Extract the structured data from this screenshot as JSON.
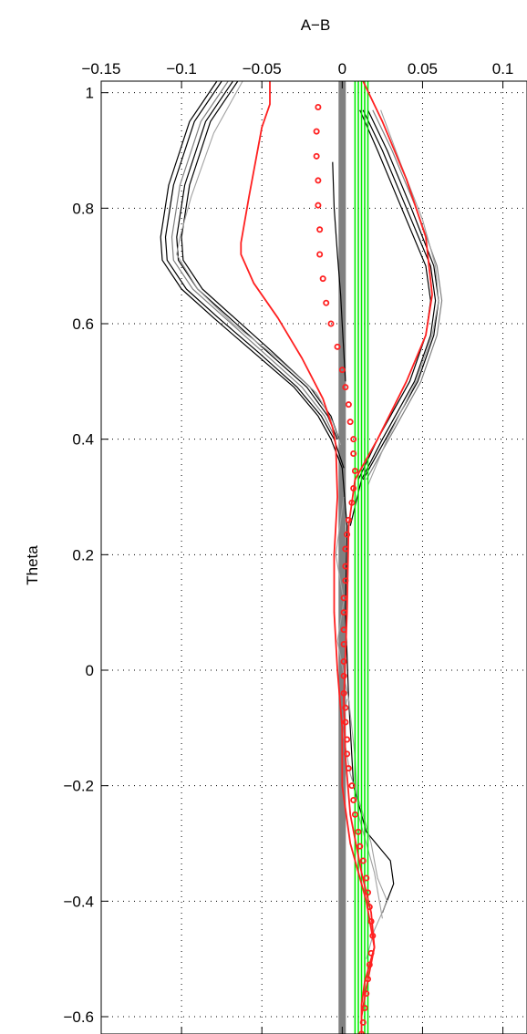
{
  "chart_data": {
    "type": "line",
    "title": "",
    "xlabel": "A−B",
    "ylabel": "Theta",
    "xlim": [
      -0.15,
      0.115
    ],
    "ylim": [
      -0.63,
      1.02
    ],
    "x_axis_position": "top",
    "grid": "dotted",
    "legend": "none",
    "x_ticks": [
      -0.15,
      -0.1,
      -0.05,
      0,
      0.05,
      0.1
    ],
    "x_tick_labels": [
      "−0.15",
      "−0.1",
      "−0.05",
      "0",
      "0.05",
      "0.1"
    ],
    "y_ticks": [
      -0.6,
      -0.4,
      -0.2,
      0,
      0.2,
      0.4,
      0.6,
      0.8,
      1.0
    ],
    "y_tick_labels": [
      "−0.6",
      "−0.4",
      "−0.2",
      "0",
      "0.2",
      "0.4",
      "0.6",
      "0.8",
      "1"
    ],
    "colors": {
      "red": "#ff2020",
      "green": "#00ee00",
      "black": "#000000",
      "gray": "#808080",
      "lightgray": "#a0a0a0",
      "thickgray": "#808080"
    },
    "series": [
      {
        "color": "black",
        "values": [
          [
            -0.078,
            1.02
          ],
          [
            -0.095,
            0.95
          ],
          [
            -0.108,
            0.84
          ],
          [
            -0.113,
            0.75
          ],
          [
            -0.112,
            0.71
          ],
          [
            -0.1,
            0.66
          ],
          [
            -0.08,
            0.61
          ],
          [
            -0.055,
            0.55
          ],
          [
            -0.03,
            0.49
          ],
          [
            -0.015,
            0.44
          ],
          [
            -0.007,
            0.4
          ],
          [
            0.0,
            0.35
          ],
          [
            0.003,
            0.25
          ],
          [
            0.002,
            0.1
          ],
          [
            0.004,
            -0.05
          ],
          [
            0.007,
            -0.2
          ],
          [
            0.015,
            -0.28
          ],
          [
            0.03,
            -0.33
          ],
          [
            0.032,
            -0.37
          ],
          [
            0.025,
            -0.42
          ]
        ]
      },
      {
        "color": "black",
        "values": [
          [
            -0.075,
            1.02
          ],
          [
            -0.092,
            0.95
          ],
          [
            -0.105,
            0.84
          ],
          [
            -0.11,
            0.75
          ],
          [
            -0.109,
            0.71
          ],
          [
            -0.097,
            0.66
          ],
          [
            -0.077,
            0.61
          ],
          [
            -0.052,
            0.55
          ],
          [
            -0.028,
            0.49
          ],
          [
            -0.013,
            0.44
          ],
          [
            -0.005,
            0.4
          ],
          [
            0.001,
            0.35
          ]
        ]
      },
      {
        "color": "gray",
        "values": [
          [
            -0.071,
            1.02
          ],
          [
            -0.088,
            0.95
          ],
          [
            -0.101,
            0.84
          ],
          [
            -0.106,
            0.75
          ],
          [
            -0.105,
            0.71
          ],
          [
            -0.093,
            0.66
          ],
          [
            -0.073,
            0.61
          ],
          [
            -0.049,
            0.55
          ],
          [
            -0.025,
            0.49
          ],
          [
            -0.011,
            0.44
          ],
          [
            -0.004,
            0.4
          ]
        ]
      },
      {
        "color": "black",
        "values": [
          [
            -0.068,
            1.02
          ],
          [
            -0.085,
            0.95
          ],
          [
            -0.098,
            0.84
          ],
          [
            -0.103,
            0.75
          ],
          [
            -0.102,
            0.71
          ],
          [
            -0.09,
            0.66
          ],
          [
            -0.07,
            0.61
          ],
          [
            -0.046,
            0.55
          ],
          [
            -0.022,
            0.49
          ],
          [
            -0.009,
            0.44
          ],
          [
            -0.003,
            0.4
          ]
        ]
      },
      {
        "color": "black",
        "values": [
          [
            -0.065,
            1.02
          ],
          [
            -0.082,
            0.95
          ],
          [
            -0.095,
            0.84
          ],
          [
            -0.1,
            0.75
          ],
          [
            -0.099,
            0.71
          ],
          [
            -0.087,
            0.66
          ],
          [
            -0.067,
            0.61
          ],
          [
            -0.043,
            0.55
          ],
          [
            -0.02,
            0.49
          ],
          [
            -0.007,
            0.44
          ],
          [
            -0.002,
            0.4
          ]
        ]
      },
      {
        "color": "lightgray",
        "values": [
          [
            -0.062,
            1.02
          ],
          [
            -0.08,
            0.93
          ],
          [
            -0.094,
            0.82
          ],
          [
            -0.101,
            0.75
          ],
          [
            -0.103,
            0.72
          ],
          [
            -0.09,
            0.66
          ],
          [
            -0.068,
            0.6
          ],
          [
            -0.04,
            0.54
          ],
          [
            -0.016,
            0.48
          ],
          [
            -0.006,
            0.43
          ],
          [
            -0.001,
            0.39
          ]
        ]
      },
      {
        "color": "lightgray",
        "values": [
          [
            0.003,
            -0.05
          ],
          [
            0.0,
            -0.1
          ],
          [
            0.005,
            -0.18
          ],
          [
            0.012,
            -0.24
          ],
          [
            0.018,
            -0.3
          ],
          [
            0.022,
            -0.36
          ],
          [
            0.028,
            -0.4
          ],
          [
            0.02,
            -0.45
          ],
          [
            0.015,
            -0.5
          ]
        ]
      },
      {
        "color": "lightgray",
        "values": [
          [
            0.001,
            0.3
          ],
          [
            -0.004,
            0.2
          ],
          [
            0.001,
            0.12
          ],
          [
            -0.003,
            0.05
          ],
          [
            0.004,
            -0.05
          ],
          [
            0.008,
            -0.15
          ],
          [
            0.01,
            -0.25
          ],
          [
            0.02,
            -0.35
          ],
          [
            0.025,
            -0.43
          ]
        ]
      },
      {
        "color": "black",
        "values": [
          [
            0.013,
            0.97
          ],
          [
            0.025,
            0.9
          ],
          [
            0.04,
            0.8
          ],
          [
            0.055,
            0.7
          ],
          [
            0.058,
            0.64
          ],
          [
            0.055,
            0.58
          ],
          [
            0.045,
            0.5
          ],
          [
            0.025,
            0.4
          ],
          [
            0.012,
            0.33
          ],
          [
            0.005,
            0.25
          ]
        ]
      },
      {
        "color": "black",
        "values": [
          [
            0.016,
            0.97
          ],
          [
            0.028,
            0.9
          ],
          [
            0.043,
            0.8
          ],
          [
            0.057,
            0.7
          ],
          [
            0.06,
            0.64
          ],
          [
            0.057,
            0.58
          ],
          [
            0.047,
            0.5
          ],
          [
            0.027,
            0.4
          ],
          [
            0.013,
            0.33
          ]
        ]
      },
      {
        "color": "gray",
        "values": [
          [
            0.019,
            0.97
          ],
          [
            0.031,
            0.9
          ],
          [
            0.046,
            0.8
          ],
          [
            0.059,
            0.7
          ],
          [
            0.062,
            0.64
          ],
          [
            0.059,
            0.58
          ],
          [
            0.049,
            0.5
          ],
          [
            0.029,
            0.4
          ],
          [
            0.015,
            0.33
          ]
        ]
      },
      {
        "color": "black",
        "values": [
          [
            0.011,
            0.97
          ],
          [
            0.022,
            0.9
          ],
          [
            0.037,
            0.8
          ],
          [
            0.052,
            0.7
          ],
          [
            0.055,
            0.64
          ],
          [
            0.052,
            0.58
          ],
          [
            0.042,
            0.5
          ],
          [
            0.022,
            0.4
          ],
          [
            0.01,
            0.33
          ]
        ]
      },
      {
        "color": "lightgray",
        "values": [
          [
            0.024,
            0.97
          ],
          [
            0.036,
            0.88
          ],
          [
            0.05,
            0.78
          ],
          [
            0.058,
            0.7
          ],
          [
            0.06,
            0.64
          ],
          [
            0.056,
            0.58
          ],
          [
            0.046,
            0.5
          ],
          [
            0.028,
            0.4
          ],
          [
            0.016,
            0.32
          ]
        ]
      },
      {
        "color": "black",
        "values": [
          [
            -0.006,
            0.88
          ],
          [
            -0.005,
            0.8
          ],
          [
            -0.003,
            0.72
          ],
          [
            -0.001,
            0.65
          ],
          [
            0.0,
            0.6
          ],
          [
            0.002,
            0.5
          ]
        ]
      },
      {
        "color": "red",
        "values": [
          [
            -0.045,
            1.02
          ],
          [
            -0.045,
            0.98
          ],
          [
            -0.05,
            0.94
          ],
          [
            -0.058,
            0.82
          ],
          [
            -0.063,
            0.74
          ],
          [
            -0.063,
            0.72
          ],
          [
            -0.055,
            0.67
          ],
          [
            -0.04,
            0.61
          ],
          [
            -0.025,
            0.54
          ],
          [
            -0.012,
            0.47
          ],
          [
            -0.006,
            0.42
          ],
          [
            -0.004,
            0.39
          ],
          [
            -0.003,
            0.3
          ],
          [
            -0.005,
            0.2
          ],
          [
            -0.005,
            0.1
          ],
          [
            -0.003,
            0.0
          ],
          [
            0.0,
            -0.1
          ],
          [
            0.0,
            -0.2
          ],
          [
            0.005,
            -0.3
          ],
          [
            0.015,
            -0.4
          ],
          [
            0.02,
            -0.48
          ],
          [
            0.014,
            -0.54
          ],
          [
            0.012,
            -0.58
          ],
          [
            0.012,
            -0.63
          ]
        ]
      },
      {
        "color": "red",
        "values": [
          [
            0.013,
            1.02
          ],
          [
            0.025,
            0.95
          ],
          [
            0.04,
            0.85
          ],
          [
            0.052,
            0.75
          ],
          [
            0.056,
            0.65
          ],
          [
            0.052,
            0.58
          ],
          [
            0.04,
            0.5
          ],
          [
            0.022,
            0.4
          ],
          [
            0.008,
            0.33
          ],
          [
            0.004,
            0.25
          ],
          [
            0.003,
            0.1
          ],
          [
            0.001,
            -0.05
          ],
          [
            0.002,
            -0.15
          ],
          [
            0.005,
            -0.25
          ],
          [
            0.012,
            -0.35
          ],
          [
            0.018,
            -0.42
          ],
          [
            0.02,
            -0.48
          ],
          [
            0.015,
            -0.55
          ],
          [
            0.012,
            -0.6
          ]
        ]
      },
      {
        "color": "green",
        "values": [
          [
            0.008,
            1.02
          ],
          [
            0.008,
            -0.63
          ]
        ]
      },
      {
        "color": "green",
        "values": [
          [
            0.01,
            1.02
          ],
          [
            0.01,
            -0.63
          ]
        ]
      },
      {
        "color": "green",
        "values": [
          [
            0.012,
            1.02
          ],
          [
            0.012,
            -0.63
          ]
        ]
      },
      {
        "color": "green",
        "values": [
          [
            0.014,
            1.02
          ],
          [
            0.014,
            -0.63
          ]
        ]
      },
      {
        "color": "green",
        "values": [
          [
            0.016,
            1.02
          ],
          [
            0.016,
            -0.63
          ]
        ]
      },
      {
        "color": "thickgray",
        "values": [
          [
            0.0,
            1.02
          ],
          [
            0.0,
            -0.63
          ]
        ]
      }
    ],
    "markers": {
      "color": "red",
      "points": [
        [
          -0.015,
          0.975
        ],
        [
          -0.016,
          0.933
        ],
        [
          -0.016,
          0.89
        ],
        [
          -0.015,
          0.848
        ],
        [
          -0.015,
          0.805
        ],
        [
          -0.014,
          0.763
        ],
        [
          -0.014,
          0.72
        ],
        [
          -0.012,
          0.678
        ],
        [
          -0.01,
          0.636
        ],
        [
          -0.007,
          0.6
        ],
        [
          -0.003,
          0.56
        ],
        [
          0.0,
          0.52
        ],
        [
          0.002,
          0.49
        ],
        [
          0.004,
          0.46
        ],
        [
          0.005,
          0.43
        ],
        [
          0.007,
          0.4
        ],
        [
          0.007,
          0.375
        ],
        [
          0.008,
          0.345
        ],
        [
          0.007,
          0.315
        ],
        [
          0.006,
          0.29
        ],
        [
          0.004,
          0.26
        ],
        [
          0.003,
          0.235
        ],
        [
          0.002,
          0.21
        ],
        [
          0.002,
          0.18
        ],
        [
          0.002,
          0.155
        ],
        [
          0.001,
          0.125
        ],
        [
          0.001,
          0.1
        ],
        [
          0.001,
          0.07
        ],
        [
          0.001,
          0.045
        ],
        [
          0.001,
          0.015
        ],
        [
          0.001,
          -0.01
        ],
        [
          0.001,
          -0.04
        ],
        [
          0.002,
          -0.065
        ],
        [
          0.002,
          -0.09
        ],
        [
          0.003,
          -0.12
        ],
        [
          0.003,
          -0.145
        ],
        [
          0.004,
          -0.17
        ],
        [
          0.006,
          -0.2
        ],
        [
          0.007,
          -0.225
        ],
        [
          0.008,
          -0.25
        ],
        [
          0.01,
          -0.28
        ],
        [
          0.011,
          -0.305
        ],
        [
          0.013,
          -0.33
        ],
        [
          0.015,
          -0.36
        ],
        [
          0.016,
          -0.385
        ],
        [
          0.017,
          -0.41
        ],
        [
          0.018,
          -0.435
        ],
        [
          0.019,
          -0.46
        ],
        [
          0.018,
          -0.49
        ],
        [
          0.017,
          -0.51
        ],
        [
          0.016,
          -0.535
        ],
        [
          0.015,
          -0.56
        ],
        [
          0.014,
          -0.585
        ],
        [
          0.013,
          -0.61
        ],
        [
          0.012,
          -0.63
        ]
      ]
    }
  }
}
